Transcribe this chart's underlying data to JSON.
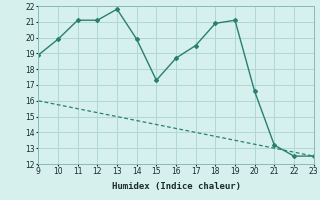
{
  "xlabel": "Humidex (Indice chaleur)",
  "ylabel": "",
  "line1_x": [
    9,
    10,
    11,
    12,
    13,
    14,
    15,
    16,
    17,
    18,
    19,
    20,
    21,
    22,
    23
  ],
  "line1_y": [
    18.9,
    19.9,
    21.1,
    21.1,
    21.8,
    19.9,
    17.3,
    18.7,
    19.5,
    20.9,
    21.1,
    16.6,
    13.2,
    12.5,
    12.5
  ],
  "line2_x": [
    9,
    23
  ],
  "line2_y": [
    16.0,
    12.5
  ],
  "line_color": "#2a7f6f",
  "bg_color": "#d6f0ee",
  "grid_color": "#b0d8d4",
  "xlim": [
    9,
    23
  ],
  "ylim": [
    12,
    22
  ],
  "xticks": [
    9,
    10,
    11,
    12,
    13,
    14,
    15,
    16,
    17,
    18,
    19,
    20,
    21,
    22,
    23
  ],
  "yticks": [
    12,
    13,
    14,
    15,
    16,
    17,
    18,
    19,
    20,
    21,
    22
  ]
}
